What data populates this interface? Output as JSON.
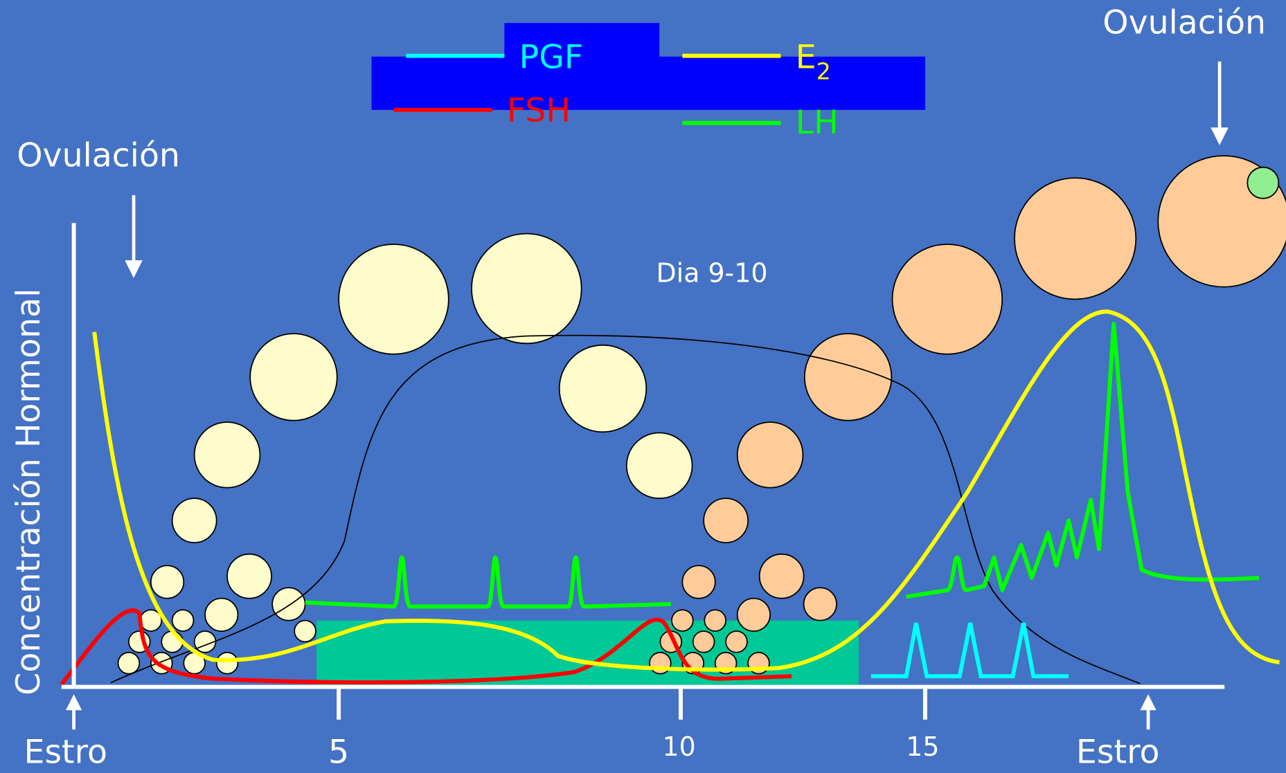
{
  "legend": {
    "pgf": "PGF",
    "fsh": "FSH",
    "e2": {
      "text": "E",
      "subscript": "2"
    },
    "lh": "LH"
  },
  "ovulation_left": "Ovulación",
  "ovulation_right": "Ovulación",
  "day_label": "Dia 9-10",
  "y_axis_label": "Concentración Hormonal",
  "x_ticks": [
    "5",
    "10",
    "15"
  ],
  "estrus_left": "Estro",
  "estrus_right": "Estro"
}
